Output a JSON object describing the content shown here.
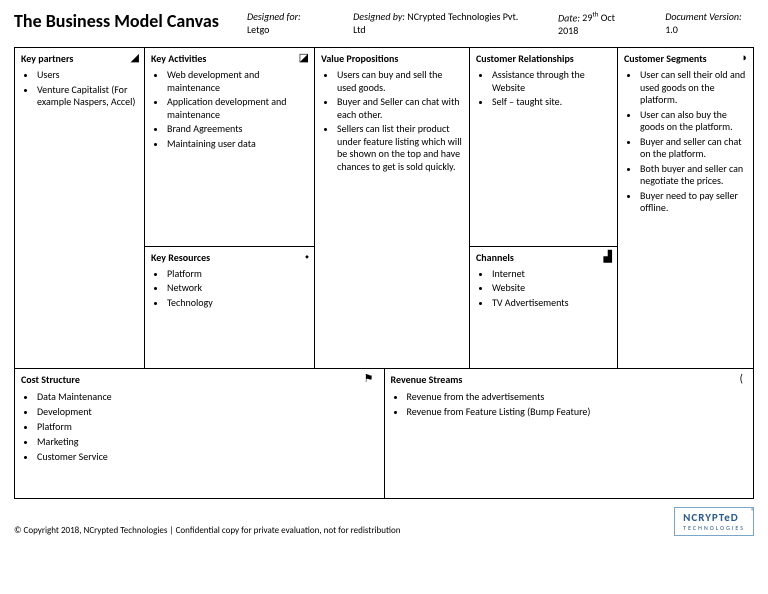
{
  "title": "The Business Model Canvas",
  "meta": {
    "designed_for_lbl": "Designed for:",
    "designed_for": "Letgo",
    "designed_by_lbl": "Designed by:",
    "designed_by": "NCrypted Technologies Pvt. Ltd",
    "date_lbl": "Date:",
    "date": "29th Oct 2018",
    "doc_lbl": "Document Version:",
    "doc": "1.0"
  },
  "blocks": {
    "key_partners": {
      "title": "Key partners",
      "items": [
        "Users",
        "Venture Capitalist (For example Naspers, Accel)"
      ]
    },
    "key_activities": {
      "title": "Key Activities",
      "items": [
        "Web development and maintenance",
        "Application development and maintenance",
        "Brand Agreements",
        "Maintaining user data"
      ]
    },
    "key_resources": {
      "title": "Key Resources",
      "items": [
        "Platform",
        "Network",
        "Technology"
      ]
    },
    "value_propositions": {
      "title": "Value Propositions",
      "items": [
        "Users can buy and sell the used goods.",
        "Buyer and Seller can chat with each other.",
        "Sellers can list their product under feature listing which will be shown on the top and have chances to get is sold quickly."
      ]
    },
    "customer_relationships": {
      "title": "Customer Relationships",
      "items": [
        "Assistance through the Website",
        "Self – taught site."
      ]
    },
    "channels": {
      "title": "Channels",
      "items": [
        "Internet",
        "Website",
        "TV Advertisements"
      ]
    },
    "customer_segments": {
      "title": "Customer Segments",
      "items": [
        "User can sell their old and used goods on the platform.",
        "User can also buy the goods on the platform.",
        "Buyer and seller can chat on the platform.",
        "Both buyer and seller can negotiate the prices.",
        "Buyer need to pay seller offline."
      ]
    },
    "cost_structure": {
      "title": "Cost Structure",
      "items": [
        "Data Maintenance",
        "Development",
        "Platform",
        "Marketing",
        "Customer Service"
      ]
    },
    "revenue_streams": {
      "title": "Revenue Streams",
      "items": [
        "Revenue from the advertisements",
        "Revenue from Feature Listing (Bump Feature)"
      ]
    }
  },
  "icons": {
    "key_partners": "◢",
    "key_activities": "◪",
    "key_resources": "⬩",
    "value_propositions": "",
    "customer_relationships": "",
    "channels": "▟",
    "customer_segments": "◗",
    "cost_structure": "⚑",
    "revenue_streams": "("
  },
  "footer": {
    "copyright": "© Copyright 2018, NCrypted Technologies | Confidential copy for private evaluation, not for redistribution",
    "logo_brand": "NCRYPTeD",
    "logo_sub": "TECHNOLOGIES"
  }
}
